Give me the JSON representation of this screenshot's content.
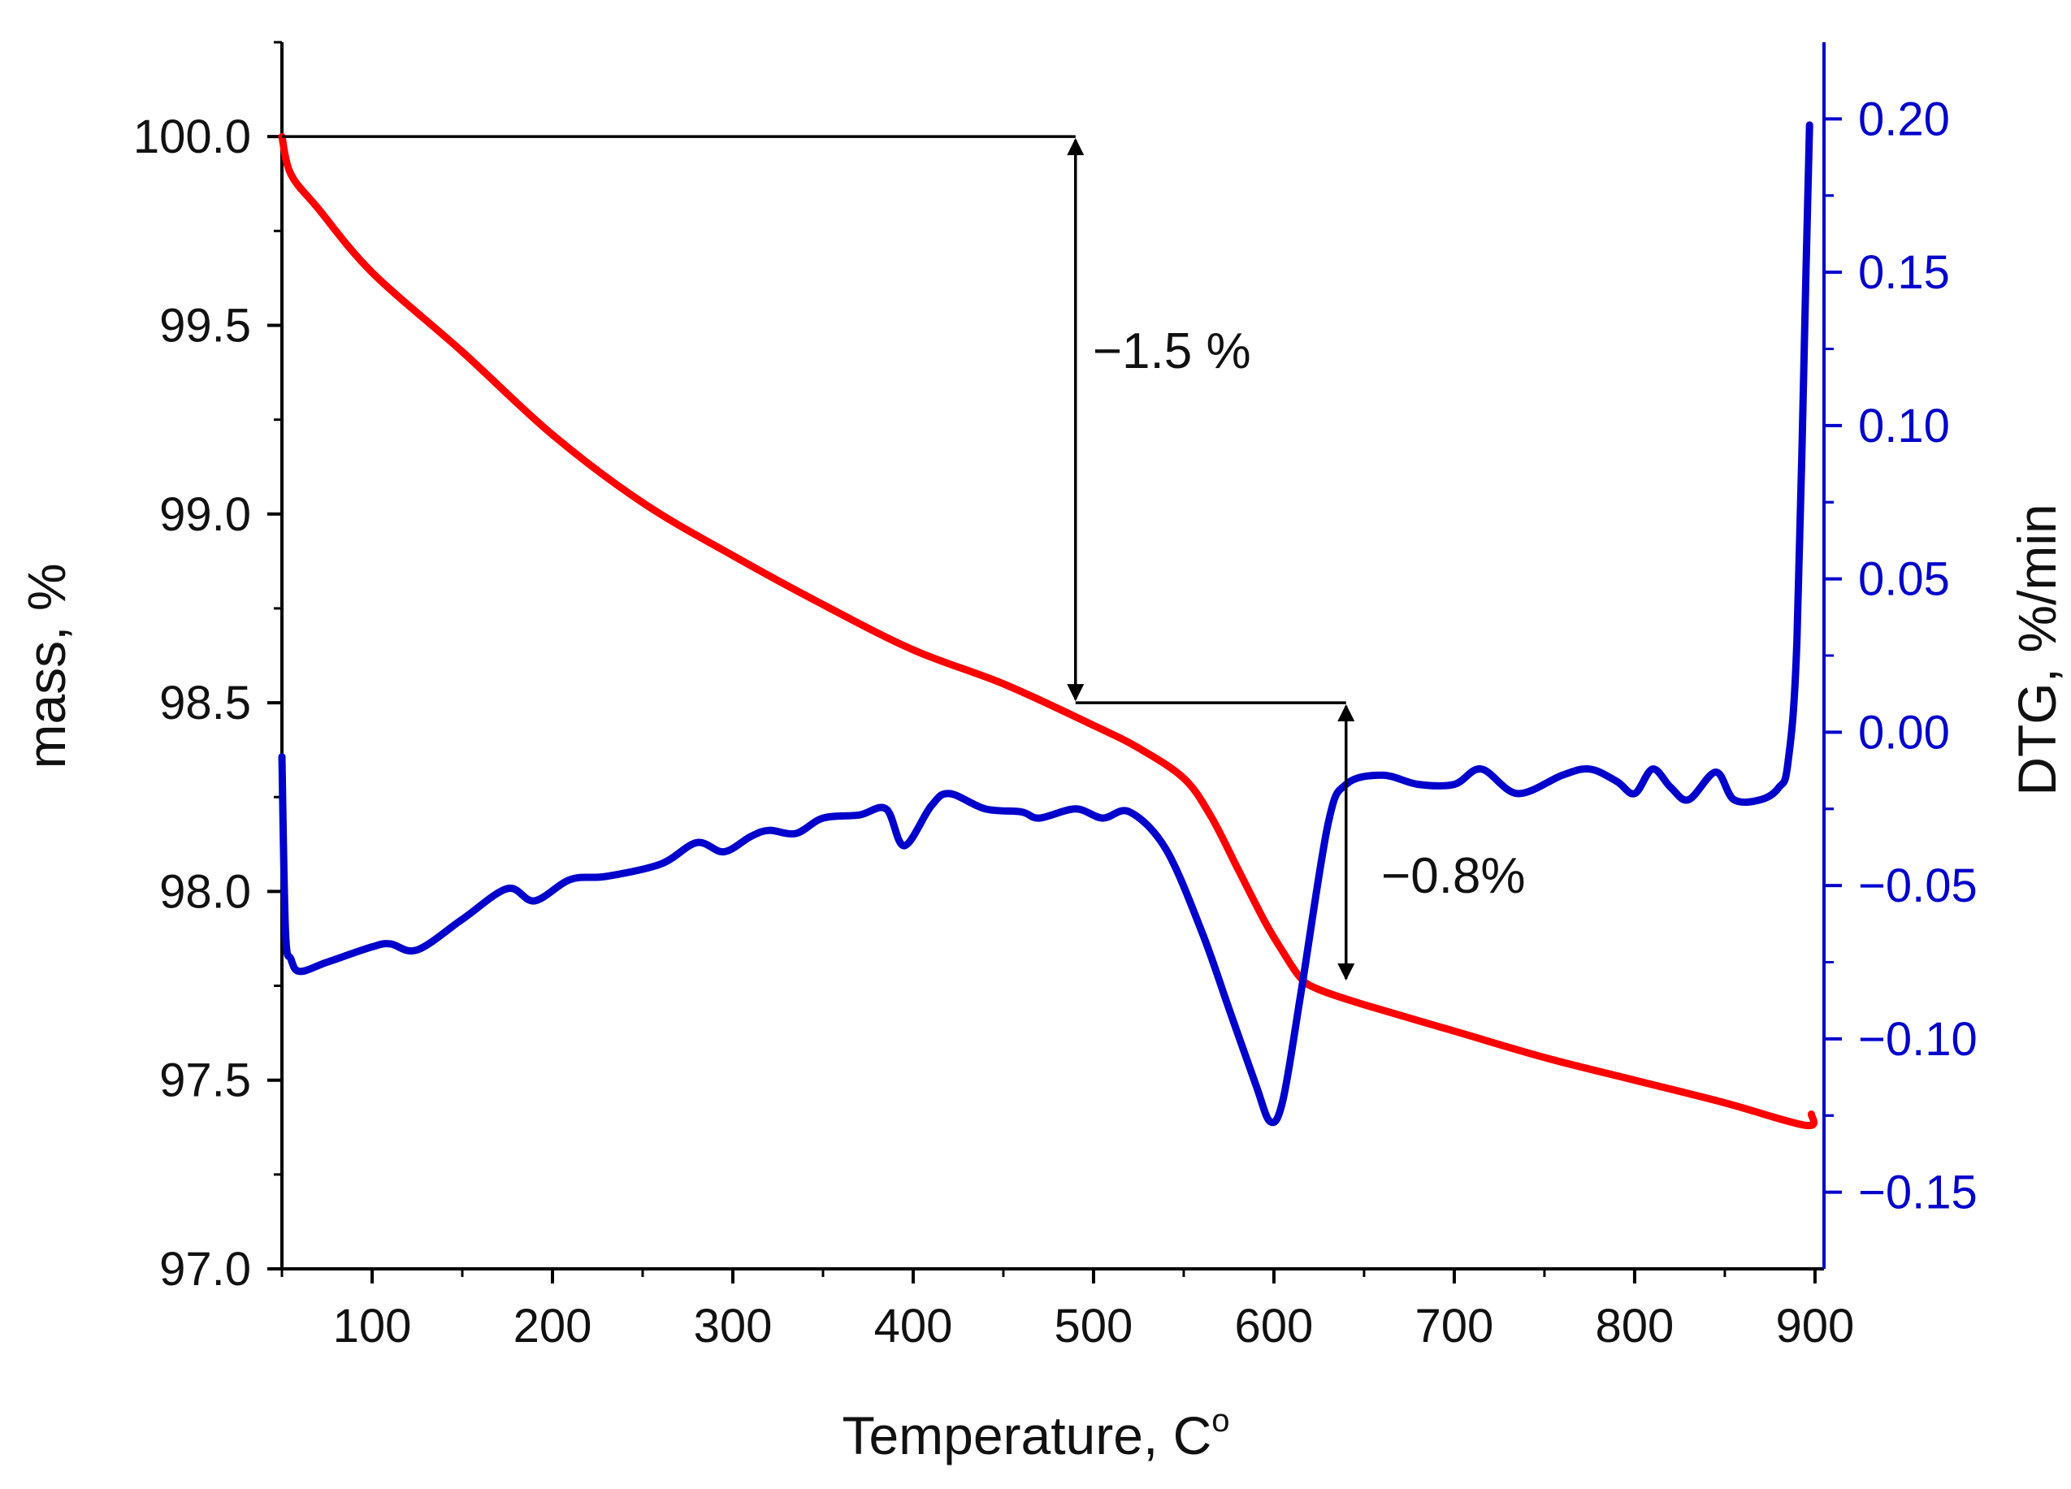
{
  "chart_data": {
    "type": "line",
    "title": "",
    "xlabel": "Temperature, C",
    "xlabel_superscript": "o",
    "ylabel_left": "mass, %",
    "ylabel_right": "DTG, %/min",
    "xlim": [
      50,
      905
    ],
    "ylim_left": [
      97.0,
      100.25
    ],
    "ylim_right": [
      -0.175,
      0.225
    ],
    "x_ticks": [
      {
        "value": 100,
        "label": "100"
      },
      {
        "value": 200,
        "label": "200"
      },
      {
        "value": 300,
        "label": "300"
      },
      {
        "value": 400,
        "label": "400"
      },
      {
        "value": 500,
        "label": "500"
      },
      {
        "value": 600,
        "label": "600"
      },
      {
        "value": 700,
        "label": "700"
      },
      {
        "value": 800,
        "label": "800"
      },
      {
        "value": 900,
        "label": "900"
      }
    ],
    "y_left_ticks": [
      {
        "value": 97.0,
        "label": "97.0"
      },
      {
        "value": 97.5,
        "label": "97.5"
      },
      {
        "value": 98.0,
        "label": "98.0"
      },
      {
        "value": 98.5,
        "label": "98.5"
      },
      {
        "value": 99.0,
        "label": "99.0"
      },
      {
        "value": 99.5,
        "label": "99.5"
      },
      {
        "value": 100.0,
        "label": "100.0"
      }
    ],
    "y_right_ticks": [
      {
        "value": -0.15,
        "label": "−0.15"
      },
      {
        "value": -0.1,
        "label": "−0.10"
      },
      {
        "value": -0.05,
        "label": "−0.05"
      },
      {
        "value": 0.0,
        "label": "0.00"
      },
      {
        "value": 0.05,
        "label": "0.05"
      },
      {
        "value": 0.1,
        "label": "0.10"
      },
      {
        "value": 0.15,
        "label": "0.15"
      },
      {
        "value": 0.2,
        "label": "0.20"
      }
    ],
    "series": [
      {
        "name": "mass",
        "axis": "left",
        "color": "#ff0000",
        "x": [
          50,
          55,
          70,
          100,
          150,
          200,
          250,
          300,
          350,
          400,
          450,
          500,
          525,
          550,
          565,
          580,
          595,
          605,
          615,
          625,
          650,
          700,
          750,
          800,
          850,
          895,
          898
        ],
        "y": [
          100.0,
          99.9,
          99.81,
          99.64,
          99.43,
          99.21,
          99.03,
          98.89,
          98.76,
          98.64,
          98.55,
          98.44,
          98.38,
          98.3,
          98.2,
          98.06,
          97.92,
          97.84,
          97.77,
          97.74,
          97.7,
          97.63,
          97.56,
          97.5,
          97.44,
          97.38,
          97.41
        ]
      },
      {
        "name": "DTG",
        "axis": "right",
        "color": "#0000cc",
        "x": [
          50,
          52,
          55,
          60,
          75,
          100,
          110,
          125,
          150,
          175,
          190,
          210,
          230,
          260,
          280,
          295,
          310,
          320,
          335,
          350,
          370,
          385,
          395,
          410,
          420,
          440,
          460,
          470,
          490,
          505,
          520,
          540,
          560,
          575,
          590,
          598,
          605,
          615,
          630,
          640,
          660,
          680,
          700,
          715,
          735,
          760,
          775,
          790,
          800,
          810,
          820,
          830,
          845,
          855,
          870,
          880,
          885,
          890,
          895,
          897
        ],
        "y": [
          -0.008,
          -0.065,
          -0.074,
          -0.078,
          -0.075,
          -0.07,
          -0.069,
          -0.071,
          -0.061,
          -0.051,
          -0.055,
          -0.048,
          -0.047,
          -0.043,
          -0.036,
          -0.039,
          -0.034,
          -0.032,
          -0.033,
          -0.028,
          -0.027,
          -0.025,
          -0.037,
          -0.024,
          -0.02,
          -0.025,
          -0.026,
          -0.028,
          -0.025,
          -0.028,
          -0.026,
          -0.038,
          -0.065,
          -0.09,
          -0.115,
          -0.127,
          -0.12,
          -0.085,
          -0.03,
          -0.017,
          -0.014,
          -0.017,
          -0.017,
          -0.012,
          -0.02,
          -0.014,
          -0.012,
          -0.016,
          -0.02,
          -0.012,
          -0.018,
          -0.022,
          -0.013,
          -0.022,
          -0.022,
          -0.018,
          -0.01,
          0.03,
          0.15,
          0.198
        ]
      }
    ],
    "annotations": [
      {
        "label": "−1.5 %",
        "x_at": 490,
        "from_mass": 100.0,
        "to_mass": 98.5,
        "ref_line_from_x": 50,
        "ref_line_to_x": 490,
        "text_x": 495,
        "text_mass": 99.43
      },
      {
        "label": "−0.8%",
        "x_at": 640,
        "from_mass": 98.5,
        "to_mass": 97.76,
        "ref_line_from_x": 490,
        "ref_line_to_x": 640,
        "text_x": 655,
        "text_mass": 98.04
      }
    ],
    "colors": {
      "left_axis": "#000000",
      "right_axis": "#0000cc",
      "mass_curve": "#ff0000",
      "dtg_curve": "#0000cc"
    }
  }
}
